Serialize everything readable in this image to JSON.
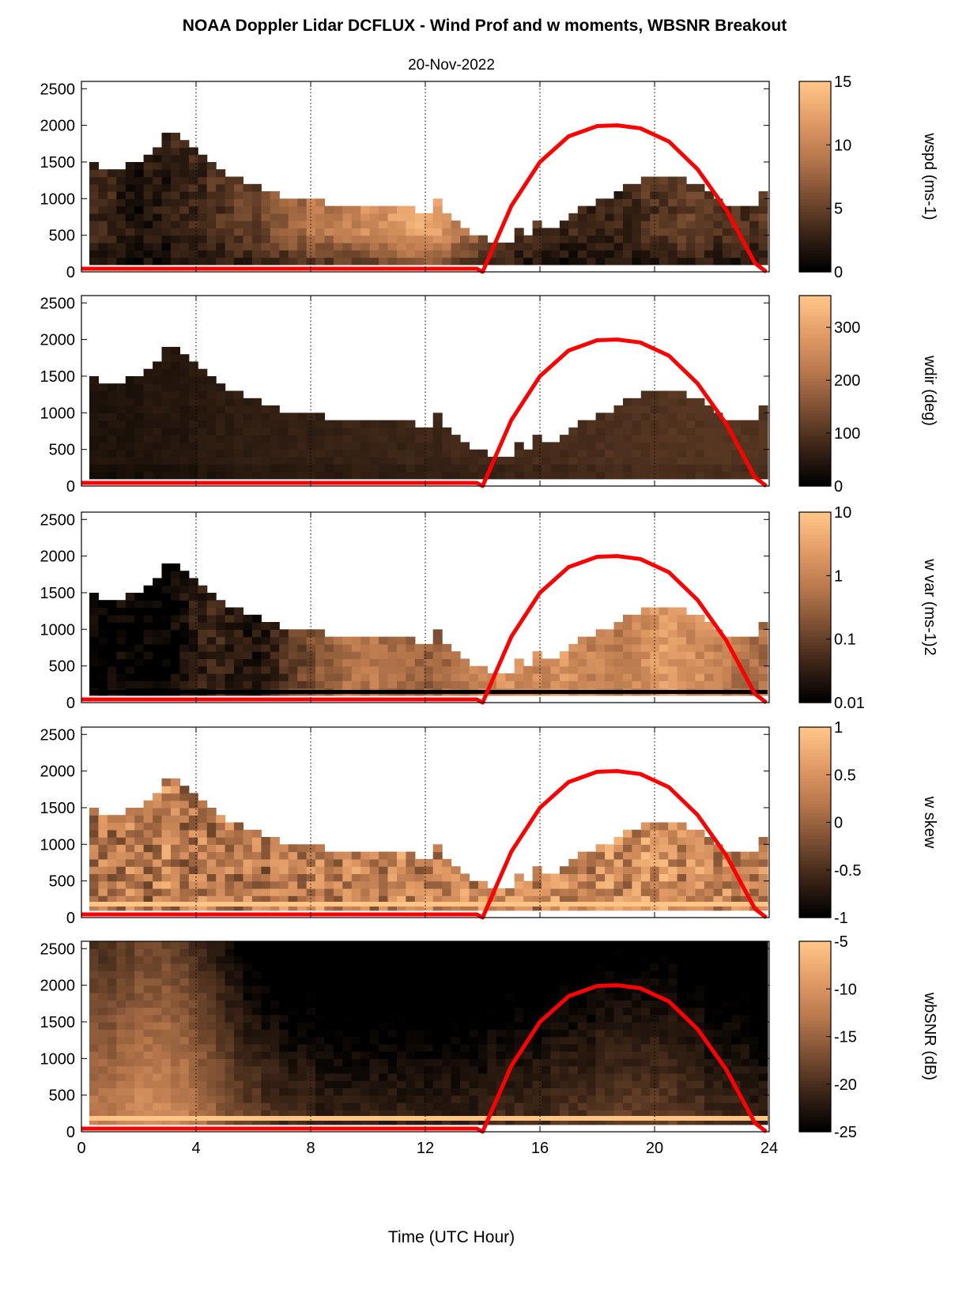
{
  "title": "NOAA Doppler Lidar DCFLUX - Wind Prof and w moments, WBSNR Breakout",
  "date": "20-Nov-2022",
  "xlabel": "Time (UTC Hour)",
  "colors": {
    "colormap": [
      "#000000",
      "#3a2416",
      "#7a4e31",
      "#b7774c",
      "#e29b66",
      "#ffc587"
    ],
    "curve": "#ff0000",
    "axes": "#000000"
  },
  "chart_data": [
    {
      "type": "heatmap",
      "variable": "wspd",
      "xlabel": "",
      "ylabel": "",
      "xlim": [
        0,
        24
      ],
      "ylim": [
        0,
        2600
      ],
      "xticks": [
        "0",
        "4",
        "8",
        "12",
        "16",
        "20",
        "24"
      ],
      "yticks": [
        "0",
        "500",
        "1000",
        "1500",
        "2000",
        "2500"
      ],
      "colorbar": {
        "label": "wspd (ms-1)",
        "range": [
          0,
          15
        ],
        "ticks": [
          "0",
          "5",
          "10",
          "15"
        ]
      },
      "profile_tops": [
        1450,
        1300,
        1350,
        1350,
        1400,
        1450,
        1550,
        1650,
        1850,
        1850,
        1700,
        1600,
        1500,
        1400,
        1300,
        1250,
        1200,
        1150,
        1100,
        1050,
        1000,
        950,
        950,
        900,
        900,
        900,
        850,
        850,
        850,
        850,
        800,
        800,
        800,
        800,
        800,
        800,
        750,
        750,
        950,
        700,
        600,
        500,
        450,
        400,
        350,
        300,
        350,
        500,
        450,
        600,
        550,
        500,
        600,
        700,
        800,
        850,
        900,
        950,
        1050,
        1150,
        1150,
        1200,
        1200,
        1200,
        1250,
        1200,
        1150,
        1100,
        1000,
        900,
        850,
        850,
        850,
        850,
        1000
      ],
      "values_ms": [
        3,
        3,
        3,
        2,
        2,
        1,
        2,
        2,
        2,
        3,
        3,
        3,
        3,
        4,
        4,
        4,
        5,
        5,
        5,
        6,
        7,
        7,
        8,
        8,
        9,
        9,
        9,
        9,
        10,
        10,
        11,
        11,
        11,
        12,
        12,
        13,
        13,
        13,
        12,
        11,
        10,
        9,
        8,
        7,
        6,
        5,
        5,
        4,
        4,
        4,
        4,
        3,
        3,
        3,
        3,
        3,
        3,
        3,
        3,
        3,
        3,
        4,
        4,
        4,
        4,
        5,
        5,
        5,
        4,
        4,
        4,
        4,
        4,
        4,
        5
      ],
      "sun_elevation_curve": {
        "x": [
          14.0,
          15,
          16,
          17,
          18,
          18.7,
          19.5,
          20.5,
          21.5,
          22.5,
          23.5,
          23.9
        ],
        "y": [
          0,
          900,
          1500,
          1850,
          1990,
          2000,
          1960,
          1780,
          1400,
          850,
          120,
          0
        ]
      }
    },
    {
      "type": "heatmap",
      "variable": "wdir",
      "xlim": [
        0,
        24
      ],
      "ylim": [
        0,
        2600
      ],
      "xticks": [
        "0",
        "4",
        "8",
        "12",
        "16",
        "20",
        "24"
      ],
      "yticks": [
        "0",
        "500",
        "1000",
        "1500",
        "2000",
        "2500"
      ],
      "colorbar": {
        "label": "wdir (deg)",
        "range": [
          0,
          360
        ],
        "ticks": [
          "0",
          "100",
          "200",
          "300"
        ]
      },
      "values_deg": [
        40,
        40,
        40,
        40,
        40,
        40,
        45,
        45,
        45,
        45,
        45,
        50,
        50,
        50,
        55,
        55,
        60,
        60,
        60,
        60,
        60,
        60,
        65,
        65,
        65,
        65,
        65,
        65,
        70,
        70,
        70,
        70,
        70,
        70,
        70,
        75,
        75,
        75,
        75,
        75,
        80,
        80,
        80,
        80,
        80,
        80,
        85,
        85,
        85,
        85,
        85,
        85,
        85,
        90,
        90,
        90,
        90,
        95,
        95,
        95,
        95,
        95,
        95,
        100,
        100,
        100,
        100,
        100,
        100,
        100,
        100,
        100,
        100,
        100,
        100
      ]
    },
    {
      "type": "heatmap",
      "variable": "w var",
      "xlim": [
        0,
        24
      ],
      "ylim": [
        0,
        2600
      ],
      "xticks": [
        "0",
        "4",
        "8",
        "12",
        "16",
        "20",
        "24"
      ],
      "yticks": [
        "0",
        "500",
        "1000",
        "1500",
        "2000",
        "2500"
      ],
      "colorbar": {
        "label": "w var (ms-1)2",
        "scale": "log",
        "range": [
          0.01,
          10
        ],
        "ticks": [
          "0.01",
          "0.1",
          "1",
          "10"
        ]
      },
      "values_log10": [
        -2,
        -2,
        -1.9,
        -1.9,
        -1.9,
        -2,
        -2,
        -2,
        -2,
        -1.9,
        -1.8,
        -1.6,
        -1.5,
        -1.4,
        -1.4,
        -1.5,
        -1.6,
        -1.7,
        -1.7,
        -1.6,
        -1.4,
        -1.2,
        -1.0,
        -0.9,
        -0.8,
        -0.6,
        -0.5,
        -0.4,
        -0.3,
        -0.3,
        -0.2,
        -0.2,
        -0.3,
        -0.3,
        -0.4,
        -0.4,
        -0.5,
        -0.5,
        -0.5,
        -0.3,
        -0.2,
        -0.1,
        0,
        0.1,
        0.1,
        0.2,
        0.2,
        0.1,
        0.1,
        0.1,
        0.1,
        0.2,
        0.3,
        0.2,
        0.1,
        0,
        0,
        -0.1,
        -0.1,
        0,
        0.1,
        0.2,
        0.3,
        0.4,
        0.3,
        0.3,
        0.2,
        0.2,
        0.1,
        0,
        -0.1,
        -0.2,
        -0.3,
        -0.3,
        -0.3
      ]
    },
    {
      "type": "heatmap",
      "variable": "w skew",
      "xlim": [
        0,
        24
      ],
      "ylim": [
        0,
        2600
      ],
      "xticks": [
        "0",
        "4",
        "8",
        "12",
        "16",
        "20",
        "24"
      ],
      "yticks": [
        "0",
        "500",
        "1000",
        "1500",
        "2000",
        "2500"
      ],
      "colorbar": {
        "label": "w skew",
        "range": [
          -1,
          1
        ],
        "ticks": [
          "-1",
          "-0.5",
          "0",
          "0.5",
          "1"
        ]
      },
      "values": [
        0.1,
        0.2,
        0.1,
        0.2,
        0.3,
        0.2,
        0.1,
        0.3,
        0.4,
        0.2,
        0.1,
        0.2,
        0.3,
        0.1,
        0.2,
        0.2,
        0.1,
        0.3,
        0.2,
        0.1,
        0.2,
        0.3,
        0.2,
        0.2,
        0.3,
        0.4,
        0.3,
        0.2,
        0.3,
        0.4,
        0.3,
        0.2,
        0.2,
        0.3,
        0.4,
        0.3,
        0.2,
        0.3,
        0.2,
        0.4,
        0.5,
        0.4,
        0.3,
        0.4,
        0.3,
        0.4,
        0.5,
        0.4,
        0.4,
        0.3,
        0.4,
        0.5,
        0.4,
        0.3,
        0.4,
        0.3,
        0.4,
        0.5,
        0.4,
        0.3,
        0.4,
        0.5,
        0.4,
        0.5,
        0.4,
        0.3,
        0.4,
        0.5,
        0.4,
        0.3,
        0.4,
        0.3,
        0.4,
        0.3,
        0.4
      ]
    },
    {
      "type": "heatmap",
      "variable": "wbSNR",
      "xlabel": "Time (UTC Hour)",
      "xlim": [
        0,
        24
      ],
      "ylim": [
        0,
        2600
      ],
      "xticks": [
        "0",
        "4",
        "8",
        "12",
        "16",
        "20",
        "24"
      ],
      "yticks": [
        "0",
        "500",
        "1000",
        "1500",
        "2000",
        "2500"
      ],
      "colorbar": {
        "label": "wbSNR (dB)",
        "range": [
          -25,
          -5
        ],
        "ticks": [
          "-25",
          "-20",
          "-15",
          "-10",
          "-5"
        ]
      },
      "surface_snr_db": [
        -12,
        -12,
        -12,
        -11,
        -11,
        -10,
        -10,
        -10,
        -10,
        -11,
        -11,
        -12,
        -13,
        -14,
        -15,
        -16,
        -17,
        -18,
        -18,
        -19,
        -19,
        -20,
        -20,
        -20,
        -20,
        -21,
        -21,
        -21,
        -21,
        -21,
        -21,
        -21,
        -21,
        -21,
        -21,
        -21,
        -21,
        -21,
        -21,
        -21,
        -21,
        -21,
        -21,
        -21,
        -20,
        -20,
        -20,
        -20,
        -20,
        -20,
        -20,
        -19,
        -19,
        -19,
        -19,
        -19,
        -18,
        -18,
        -18,
        -18,
        -18,
        -18,
        -18,
        -18,
        -18,
        -19,
        -19,
        -19,
        -20,
        -20,
        -20,
        -20,
        -20,
        -21,
        -21
      ]
    }
  ]
}
